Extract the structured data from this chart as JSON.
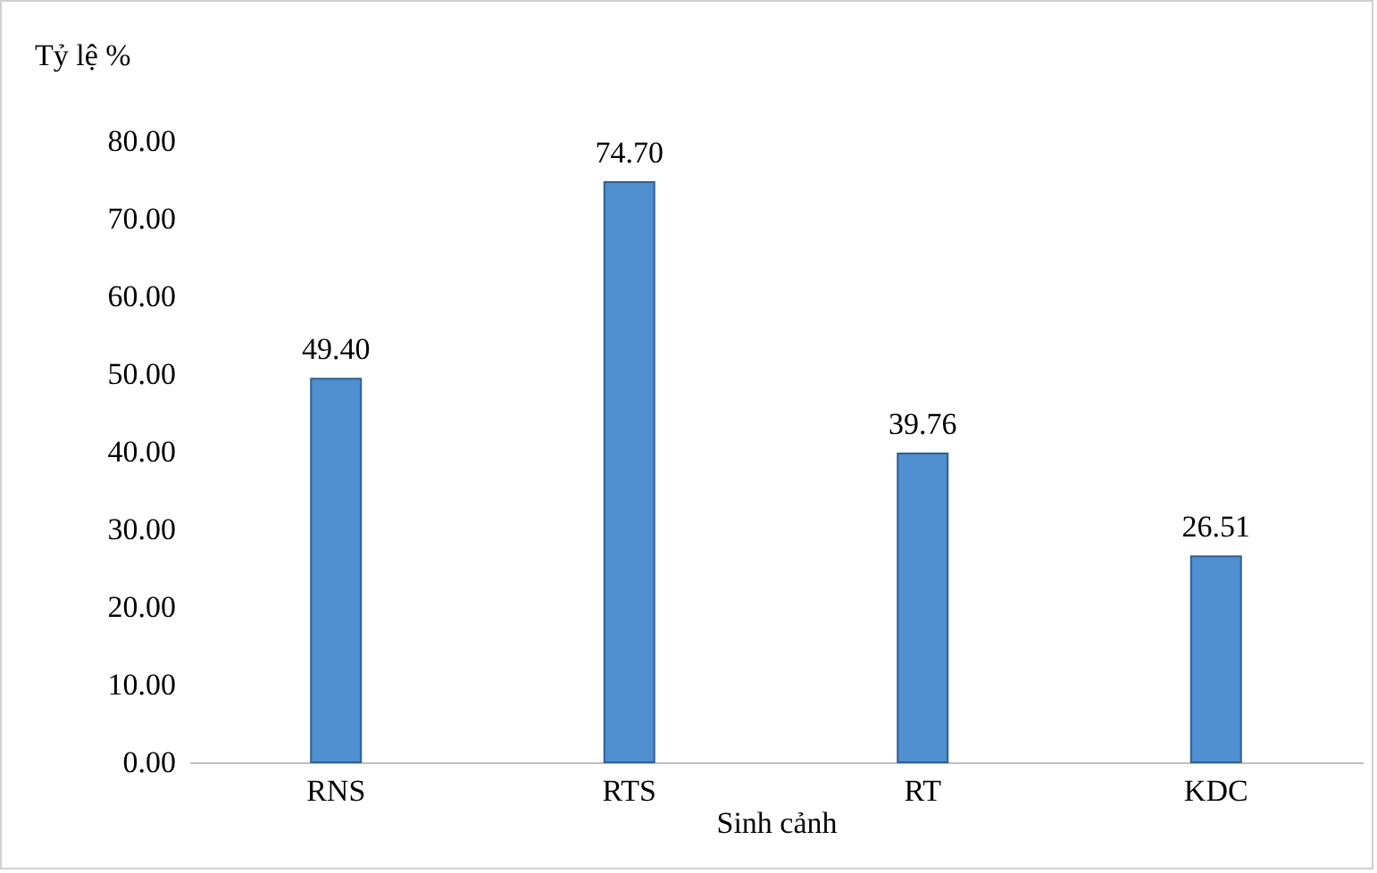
{
  "chart_data": {
    "type": "bar",
    "xlabel": "Sinh cảnh",
    "ylabel": "Tỷ lệ %",
    "categories": [
      "RNS",
      "RTS",
      "RT",
      "KDC"
    ],
    "values": [
      49.4,
      74.7,
      39.76,
      26.51
    ],
    "value_labels": [
      "49.40",
      "74.70",
      "39.76",
      "26.51"
    ],
    "color": "#4f8fd0",
    "ylim": [
      0,
      80
    ],
    "yticks": [
      {
        "value": 0,
        "label": "0.00"
      },
      {
        "value": 10,
        "label": "10.00"
      },
      {
        "value": 20,
        "label": "20.00"
      },
      {
        "value": 30,
        "label": "30.00"
      },
      {
        "value": 40,
        "label": "40.00"
      },
      {
        "value": 50,
        "label": "50.00"
      },
      {
        "value": 60,
        "label": "60.00"
      },
      {
        "value": 70,
        "label": "70.00"
      },
      {
        "value": 80,
        "label": "80.00"
      }
    ]
  }
}
